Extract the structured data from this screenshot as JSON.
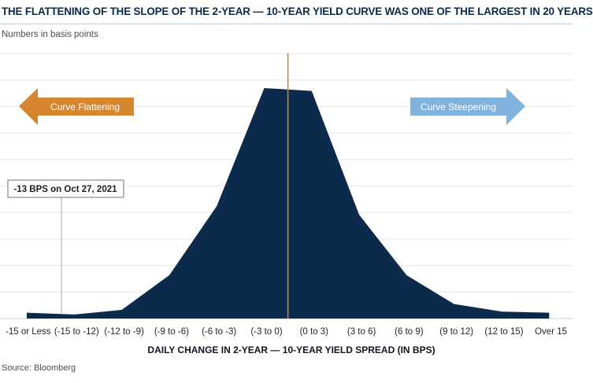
{
  "chart_data": {
    "type": "area",
    "title": "THE FLATTENING OF THE SLOPE OF THE 2-YEAR — 10-YEAR YIELD CURVE WAS ONE OF THE LARGEST IN 20 YEARS",
    "subtitle": "Numbers in basis points",
    "xlabel": "DAILY CHANGE IN 2-YEAR — 10-YEAR YIELD SPREAD (IN BPS)",
    "ylabel": "",
    "source": "Source:  Bloomberg",
    "grid": true,
    "categories": [
      "-15 or Less",
      "(-15 to -12)",
      "(-12 to -9)",
      "(-9 to -6)",
      "(-6 to -3)",
      "(-3 to 0)",
      "(0 to 3)",
      "(3 to 6)",
      "(6 to 9)",
      "(9 to 12)",
      "(12 to 15)",
      "Over 15"
    ],
    "values": [
      1,
      0.7,
      1.5,
      7.5,
      19.5,
      40,
      39.5,
      18,
      7.5,
      2.5,
      1.2,
      1
    ],
    "ylim": [
      0,
      46
    ],
    "series_color": "#0c2a4b",
    "annotations": {
      "flattening_label": "Curve Flattening",
      "flattening_color": "#d6862c",
      "steepening_label": "Curve Steepening",
      "steepening_color": "#7fb2dc",
      "callout_text": "-13 BPS on Oct 27, 2021",
      "callout_category": "(-15 to -12)",
      "center_line_color": "#d4862c"
    }
  }
}
